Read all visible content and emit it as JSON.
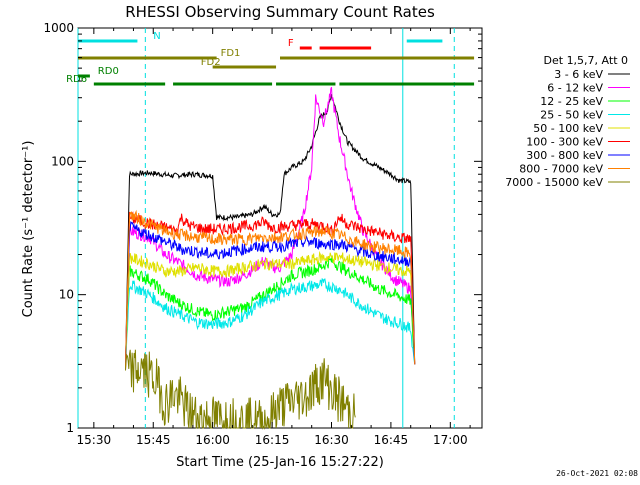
{
  "chart_data": {
    "type": "line",
    "title": "RHESSI Observing Summary Count Rates",
    "xlabel": "Start Time (25-Jan-16 15:27:22)",
    "ylabel": "Count Rate (s⁻¹ detector⁻¹)",
    "ylim": [
      1,
      1000
    ],
    "yscale": "log",
    "xlim": [
      "15:26",
      "17:08"
    ],
    "x_ticks": [
      "15:30",
      "15:45",
      "16:00",
      "16:15",
      "16:30",
      "16:45",
      "17:00"
    ],
    "y_ticks": [
      "1",
      "10",
      "100",
      "1000"
    ],
    "timestamp": "26-Oct-2021 02:08",
    "legend": {
      "placement": "right",
      "header": "Det 1,5,7, Att 0",
      "entries": [
        {
          "label": "3 - 6 keV",
          "color": "#000000"
        },
        {
          "label": "6 - 12 keV",
          "color": "#ff00ff"
        },
        {
          "label": "12 - 25 keV",
          "color": "#00ff00"
        },
        {
          "label": "25 - 50 keV",
          "color": "#00e8e8"
        },
        {
          "label": "50 - 100 keV",
          "color": "#e0e000"
        },
        {
          "label": "100 - 300 keV",
          "color": "#ff0000"
        },
        {
          "label": "300 - 800 keV",
          "color": "#0000ff"
        },
        {
          "label": "800 - 7000 keV",
          "color": "#ff8000"
        },
        {
          "label": "7000 - 15000 keV",
          "color": "#808000"
        }
      ]
    },
    "flags": [
      {
        "label": "N",
        "color": "#00e0e0",
        "segments": [
          [
            "15:26",
            "15:41"
          ],
          [
            "16:49",
            "16:58"
          ]
        ]
      },
      {
        "label": "F",
        "color": "#ff0000",
        "segments": [
          [
            "16:22",
            "16:25"
          ],
          [
            "16:27",
            "16:40"
          ]
        ]
      },
      {
        "label": "FD1",
        "color": "#808000",
        "segments": [
          [
            "15:26",
            "16:01"
          ],
          [
            "16:17",
            "17:06"
          ]
        ]
      },
      {
        "label": "FD2",
        "color": "#808000",
        "segments": [
          [
            "16:00",
            "16:16"
          ]
        ]
      },
      {
        "label": "RD0",
        "color": "#008000",
        "segments": [
          [
            "15:26",
            "15:29"
          ]
        ]
      },
      {
        "label": "RD6",
        "color": "#008000",
        "segments": [
          [
            "15:30",
            "15:48"
          ],
          [
            "15:50",
            "16:15"
          ],
          [
            "16:16",
            "16:31"
          ],
          [
            "16:32",
            "17:06"
          ]
        ]
      }
    ],
    "vlines": [
      {
        "t": "15:26",
        "style": "solid",
        "color": "#00e0e0"
      },
      {
        "t": "15:43",
        "style": "dashed",
        "color": "#00e0e0"
      },
      {
        "t": "16:48",
        "style": "solid",
        "color": "#00e0e0"
      },
      {
        "t": "17:01",
        "style": "dashed",
        "color": "#00e0e0"
      }
    ],
    "series": [
      {
        "name": "3 - 6 keV",
        "color": "#000000",
        "points": [
          [
            "15:38",
            3
          ],
          [
            "15:39",
            80
          ],
          [
            "15:44",
            82
          ],
          [
            "15:50",
            78
          ],
          [
            "15:55",
            80
          ],
          [
            "16:00",
            78
          ],
          [
            "16:01",
            38
          ],
          [
            "16:06",
            38
          ],
          [
            "16:10",
            40
          ],
          [
            "16:13",
            46
          ],
          [
            "16:15",
            40
          ],
          [
            "16:17",
            40
          ],
          [
            "16:18",
            80
          ],
          [
            "16:20",
            90
          ],
          [
            "16:23",
            100
          ],
          [
            "16:25",
            130
          ],
          [
            "16:27",
            210
          ],
          [
            "16:29",
            240
          ],
          [
            "16:30",
            320
          ],
          [
            "16:32",
            200
          ],
          [
            "16:34",
            140
          ],
          [
            "16:38",
            105
          ],
          [
            "16:42",
            90
          ],
          [
            "16:45",
            80
          ],
          [
            "16:47",
            72
          ],
          [
            "16:50",
            70
          ],
          [
            "16:51",
            3
          ]
        ]
      },
      {
        "name": "6 - 12 keV",
        "color": "#ff00ff",
        "points": [
          [
            "15:38",
            3
          ],
          [
            "15:39",
            30
          ],
          [
            "15:44",
            27
          ],
          [
            "15:48",
            20
          ],
          [
            "15:52",
            17
          ],
          [
            "15:56",
            14
          ],
          [
            "16:00",
            13
          ],
          [
            "16:04",
            12.5
          ],
          [
            "16:08",
            14
          ],
          [
            "16:13",
            18
          ],
          [
            "16:15",
            16
          ],
          [
            "16:17",
            16
          ],
          [
            "16:20",
            20
          ],
          [
            "16:23",
            40
          ],
          [
            "16:25",
            90
          ],
          [
            "16:26",
            300
          ],
          [
            "16:28",
            200
          ],
          [
            "16:30",
            330
          ],
          [
            "16:32",
            150
          ],
          [
            "16:35",
            60
          ],
          [
            "16:38",
            30
          ],
          [
            "16:42",
            18
          ],
          [
            "16:46",
            13
          ],
          [
            "16:50",
            11
          ],
          [
            "16:51",
            3
          ]
        ]
      },
      {
        "name": "12 - 25 keV",
        "color": "#00ff00",
        "points": [
          [
            "15:38",
            3
          ],
          [
            "15:39",
            15
          ],
          [
            "15:44",
            13
          ],
          [
            "15:48",
            10
          ],
          [
            "15:52",
            8.5
          ],
          [
            "15:56",
            7.5
          ],
          [
            "16:00",
            7
          ],
          [
            "16:04",
            7.5
          ],
          [
            "16:08",
            8
          ],
          [
            "16:13",
            10
          ],
          [
            "16:17",
            12
          ],
          [
            "16:20",
            14
          ],
          [
            "16:24",
            15
          ],
          [
            "16:27",
            16
          ],
          [
            "16:30",
            18
          ],
          [
            "16:34",
            15
          ],
          [
            "16:38",
            13
          ],
          [
            "16:42",
            11
          ],
          [
            "16:46",
            10
          ],
          [
            "16:50",
            9
          ],
          [
            "16:51",
            3
          ]
        ]
      },
      {
        "name": "25 - 50 keV",
        "color": "#00e8e8",
        "points": [
          [
            "15:38",
            3
          ],
          [
            "15:39",
            12
          ],
          [
            "15:44",
            10
          ],
          [
            "15:48",
            8
          ],
          [
            "15:52",
            7
          ],
          [
            "15:56",
            6.2
          ],
          [
            "16:00",
            6
          ],
          [
            "16:04",
            6.2
          ],
          [
            "16:08",
            7
          ],
          [
            "16:13",
            9
          ],
          [
            "16:17",
            10
          ],
          [
            "16:20",
            11
          ],
          [
            "16:24",
            11.5
          ],
          [
            "16:28",
            12
          ],
          [
            "16:32",
            11
          ],
          [
            "16:36",
            9
          ],
          [
            "16:40",
            7.5
          ],
          [
            "16:44",
            6.5
          ],
          [
            "16:48",
            6
          ],
          [
            "16:50",
            5.5
          ],
          [
            "16:51",
            3
          ]
        ]
      },
      {
        "name": "50 - 100 keV",
        "color": "#e0e000",
        "points": [
          [
            "15:38",
            3
          ],
          [
            "15:39",
            19
          ],
          [
            "15:44",
            17
          ],
          [
            "15:48",
            15
          ],
          [
            "15:52",
            15
          ],
          [
            "15:56",
            16
          ],
          [
            "16:00",
            15
          ],
          [
            "16:04",
            15
          ],
          [
            "16:08",
            16
          ],
          [
            "16:13",
            17
          ],
          [
            "16:17",
            17
          ],
          [
            "16:20",
            17
          ],
          [
            "16:24",
            18
          ],
          [
            "16:28",
            19
          ],
          [
            "16:32",
            19
          ],
          [
            "16:36",
            18
          ],
          [
            "16:40",
            17
          ],
          [
            "16:44",
            16
          ],
          [
            "16:48",
            15
          ],
          [
            "16:50",
            15
          ],
          [
            "16:51",
            3
          ]
        ]
      },
      {
        "name": "100 - 300 keV",
        "color": "#ff0000",
        "points": [
          [
            "15:38",
            3
          ],
          [
            "15:39",
            38
          ],
          [
            "15:44",
            34
          ],
          [
            "15:48",
            32
          ],
          [
            "15:51",
            30
          ],
          [
            "15:52",
            38
          ],
          [
            "15:54",
            33
          ],
          [
            "15:58",
            31
          ],
          [
            "16:02",
            31
          ],
          [
            "16:06",
            32
          ],
          [
            "16:10",
            33
          ],
          [
            "16:13",
            35
          ],
          [
            "16:15",
            32
          ],
          [
            "16:17",
            32
          ],
          [
            "16:20",
            33
          ],
          [
            "16:24",
            34
          ],
          [
            "16:28",
            33
          ],
          [
            "16:30",
            30
          ],
          [
            "16:32",
            38
          ],
          [
            "16:34",
            34
          ],
          [
            "16:38",
            31
          ],
          [
            "16:42",
            29
          ],
          [
            "16:46",
            27
          ],
          [
            "16:50",
            26
          ],
          [
            "16:51",
            3
          ]
        ]
      },
      {
        "name": "300 - 800 keV",
        "color": "#0000ff",
        "points": [
          [
            "15:38",
            3
          ],
          [
            "15:39",
            32
          ],
          [
            "15:44",
            28
          ],
          [
            "15:48",
            25
          ],
          [
            "15:52",
            22
          ],
          [
            "15:56",
            21
          ],
          [
            "16:00",
            20
          ],
          [
            "16:04",
            21
          ],
          [
            "16:08",
            22
          ],
          [
            "16:13",
            23
          ],
          [
            "16:17",
            23
          ],
          [
            "16:20",
            24
          ],
          [
            "16:24",
            25
          ],
          [
            "16:28",
            24
          ],
          [
            "16:32",
            24
          ],
          [
            "16:36",
            22
          ],
          [
            "16:40",
            20
          ],
          [
            "16:44",
            19
          ],
          [
            "16:48",
            18
          ],
          [
            "16:50",
            18
          ],
          [
            "16:51",
            3
          ]
        ]
      },
      {
        "name": "800 - 7000 keV",
        "color": "#ff8000",
        "points": [
          [
            "15:38",
            3
          ],
          [
            "15:39",
            40
          ],
          [
            "15:44",
            34
          ],
          [
            "15:48",
            30
          ],
          [
            "15:52",
            28
          ],
          [
            "15:56",
            27
          ],
          [
            "16:00",
            26
          ],
          [
            "16:04",
            26
          ],
          [
            "16:08",
            26
          ],
          [
            "16:13",
            27
          ],
          [
            "16:17",
            27
          ],
          [
            "16:20",
            28
          ],
          [
            "16:24",
            29
          ],
          [
            "16:28",
            30
          ],
          [
            "16:32",
            28
          ],
          [
            "16:36",
            25
          ],
          [
            "16:40",
            23
          ],
          [
            "16:44",
            22
          ],
          [
            "16:48",
            21
          ],
          [
            "16:50",
            20
          ],
          [
            "16:51",
            3
          ]
        ]
      },
      {
        "name": "7000 - 15000 keV",
        "color": "#808000",
        "points": [
          [
            "15:38",
            3
          ],
          [
            "15:39",
            2.6
          ],
          [
            "15:42",
            2.8
          ],
          [
            "15:44",
            2.5
          ],
          [
            "15:46",
            2.2
          ],
          [
            "15:48",
            1.5
          ],
          [
            "15:50",
            1.8
          ],
          [
            "15:52",
            1.6
          ],
          [
            "15:54",
            1.3
          ],
          [
            "15:56",
            1.2
          ],
          [
            "16:14",
            1.1
          ],
          [
            "16:16",
            1.4
          ],
          [
            "16:20",
            1.6
          ],
          [
            "16:24",
            1.8
          ],
          [
            "16:26",
            2.1
          ],
          [
            "16:28",
            2.4
          ],
          [
            "16:30",
            1.9
          ],
          [
            "16:32",
            1.6
          ],
          [
            "16:34",
            1.4
          ],
          [
            "16:36",
            1.2
          ]
        ]
      }
    ]
  }
}
